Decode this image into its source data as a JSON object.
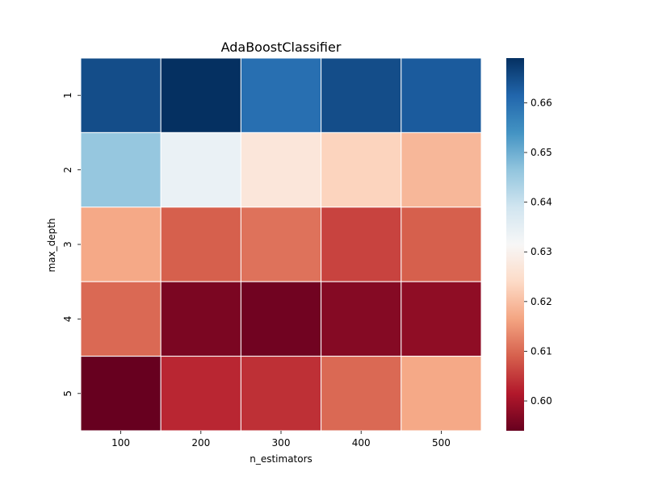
{
  "chart_data": {
    "type": "heatmap",
    "title": "AdaBoostClassifier",
    "xlabel": "n_estimators",
    "ylabel": "max_depth",
    "x_categories": [
      "100",
      "200",
      "300",
      "400",
      "500"
    ],
    "y_categories": [
      "1",
      "2",
      "3",
      "4",
      "5"
    ],
    "values": [
      [
        0.665,
        0.669,
        0.66,
        0.665,
        0.663
      ],
      [
        0.646,
        0.634,
        0.627,
        0.623,
        0.619
      ],
      [
        0.617,
        0.609,
        0.611,
        0.606,
        0.609
      ],
      [
        0.61,
        0.596,
        0.595,
        0.597,
        0.598
      ],
      [
        0.594,
        0.603,
        0.604,
        0.61,
        0.617
      ]
    ],
    "colorbar": {
      "vmin": 0.594,
      "vmax": 0.669,
      "ticks": [
        0.6,
        0.61,
        0.62,
        0.63,
        0.64,
        0.65,
        0.66
      ],
      "tick_labels": [
        "0.60",
        "0.61",
        "0.62",
        "0.63",
        "0.64",
        "0.65",
        "0.66"
      ],
      "colormap": "RdBu",
      "colors": [
        "#67001f",
        "#b2182b",
        "#d6604d",
        "#f4a582",
        "#fddbc7",
        "#f7f7f7",
        "#d1e5f0",
        "#92c5de",
        "#4393c3",
        "#2166ac",
        "#053061"
      ]
    },
    "grid": false,
    "cell_separator_color": "#ffffff"
  }
}
